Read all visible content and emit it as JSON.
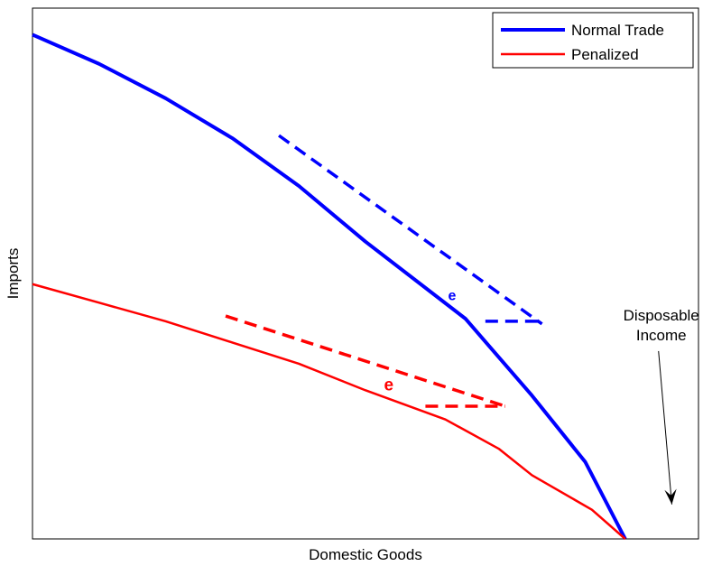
{
  "chart_data": {
    "type": "line",
    "xlabel": "Domestic Goods",
    "ylabel": "Imports",
    "xlim": [
      0,
      100
    ],
    "ylim": [
      0,
      100
    ],
    "grid": false,
    "ticks": false,
    "legend": {
      "placement": "top-right"
    },
    "series": [
      {
        "name": "Normal Trade",
        "color": "#0000ff",
        "style": "solid",
        "points": [
          [
            0,
            95
          ],
          [
            10,
            89.5
          ],
          [
            20,
            83
          ],
          [
            30,
            75.5
          ],
          [
            40,
            66.5
          ],
          [
            50,
            56
          ],
          [
            65,
            41.5
          ],
          [
            75,
            27
          ],
          [
            83,
            14.5
          ],
          [
            89,
            0
          ]
        ]
      },
      {
        "name": "Penalized",
        "color": "#ff0000",
        "style": "solid",
        "points": [
          [
            0,
            48
          ],
          [
            10,
            44.5
          ],
          [
            20,
            41
          ],
          [
            30,
            37
          ],
          [
            40,
            33
          ],
          [
            50,
            28
          ],
          [
            62,
            22.5
          ],
          [
            70,
            17
          ],
          [
            75,
            12
          ],
          [
            84,
            5.5
          ],
          [
            89,
            0
          ]
        ]
      }
    ],
    "tangents": [
      {
        "color": "#0000ff",
        "segment": [
          [
            37,
            76
          ],
          [
            76.5,
            40.5
          ]
        ]
      },
      {
        "color": "#0000ff",
        "segment": [
          [
            68,
            41
          ],
          [
            76.5,
            41
          ]
        ]
      },
      {
        "color": "#ff0000",
        "segment": [
          [
            29,
            42
          ],
          [
            71,
            25
          ]
        ]
      },
      {
        "color": "#ff0000",
        "segment": [
          [
            59,
            25
          ],
          [
            71,
            25
          ]
        ]
      }
    ],
    "point_labels": [
      {
        "text": "e",
        "color": "#0000ff",
        "at": [
          63,
          45
        ]
      },
      {
        "text": "e",
        "color": "#ff0000",
        "at": [
          53.5,
          28
        ]
      }
    ],
    "annotations": [
      {
        "lines": [
          "Disposable",
          "Income"
        ],
        "arrow_from": [
          94,
          33
        ],
        "arrow_to": [
          96,
          6.5
        ]
      }
    ]
  }
}
